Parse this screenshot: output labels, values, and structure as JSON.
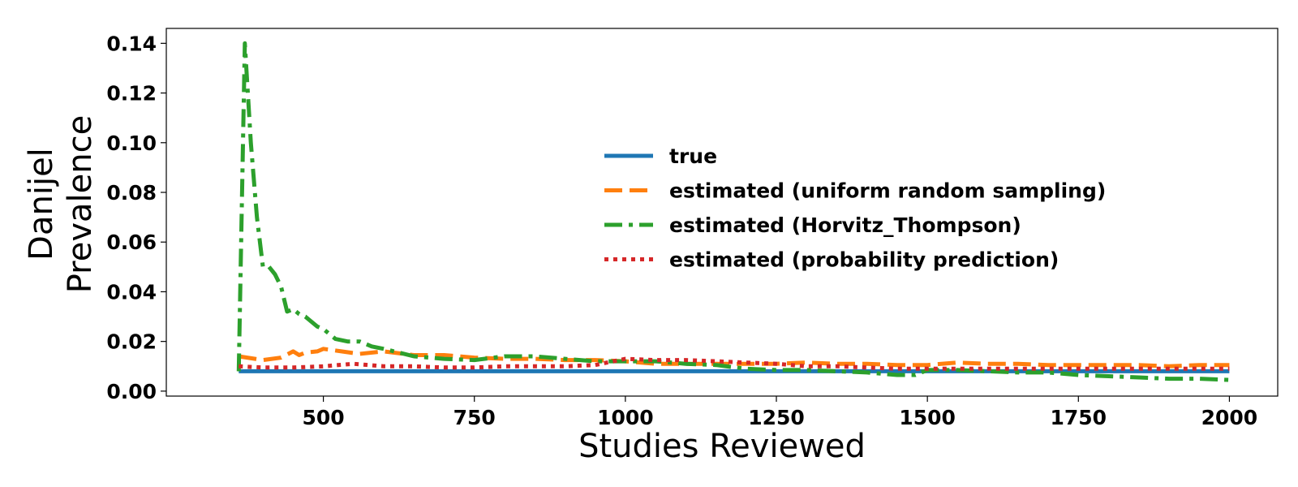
{
  "chart_data": {
    "type": "line",
    "title": "",
    "xlabel": "Studies Reviewed",
    "ylabel_lines": [
      "Danijel",
      "Prevalence"
    ],
    "xlim": [
      240,
      2080
    ],
    "ylim": [
      -0.002,
      0.146
    ],
    "x_ticks": [
      500,
      750,
      1000,
      1250,
      1500,
      1750,
      2000
    ],
    "x_tick_labels": [
      "500",
      "750",
      "1000",
      "1250",
      "1500",
      "1750",
      "2000"
    ],
    "y_ticks": [
      0.0,
      0.02,
      0.04,
      0.06,
      0.08,
      0.1,
      0.12,
      0.14
    ],
    "y_tick_labels": [
      "0.00",
      "0.02",
      "0.04",
      "0.06",
      "0.08",
      "0.10",
      "0.12",
      "0.14"
    ],
    "grid": false,
    "legend_position": "center-right",
    "series": [
      {
        "name": "true",
        "color": "#1f77b4",
        "dash": "solid",
        "x": [
          360,
          2000
        ],
        "y": [
          0.008,
          0.008
        ]
      },
      {
        "name": "estimated (uniform random sampling)",
        "color": "#ff7f0e",
        "dash": "dashed",
        "x": [
          360,
          400,
          430,
          450,
          460,
          470,
          490,
          500,
          530,
          560,
          600,
          650,
          700,
          750,
          800,
          850,
          900,
          950,
          1000,
          1050,
          1100,
          1150,
          1200,
          1250,
          1300,
          1350,
          1400,
          1450,
          1500,
          1550,
          1600,
          1650,
          1700,
          1750,
          1800,
          1850,
          1900,
          1950,
          2000
        ],
        "y": [
          0.014,
          0.0125,
          0.0135,
          0.016,
          0.0145,
          0.0155,
          0.016,
          0.017,
          0.016,
          0.015,
          0.016,
          0.0145,
          0.0145,
          0.0135,
          0.013,
          0.013,
          0.0125,
          0.0125,
          0.012,
          0.011,
          0.011,
          0.011,
          0.011,
          0.011,
          0.0115,
          0.011,
          0.011,
          0.0105,
          0.0105,
          0.0115,
          0.011,
          0.011,
          0.0105,
          0.0105,
          0.0105,
          0.0105,
          0.01,
          0.0105,
          0.0105
        ]
      },
      {
        "name": "estimated (Horvitz_Thompson)",
        "color": "#2ca02c",
        "dash": "dashdot",
        "x": [
          360,
          370,
          380,
          390,
          400,
          410,
          420,
          430,
          440,
          450,
          460,
          470,
          480,
          490,
          500,
          520,
          540,
          560,
          580,
          600,
          650,
          700,
          750,
          800,
          850,
          900,
          950,
          1000,
          1050,
          1100,
          1150,
          1200,
          1250,
          1300,
          1350,
          1400,
          1450,
          1480,
          1500,
          1550,
          1600,
          1650,
          1700,
          1750,
          1800,
          1850,
          1900,
          1950,
          2000
        ],
        "y": [
          0.008,
          0.14,
          0.1,
          0.07,
          0.05,
          0.05,
          0.047,
          0.042,
          0.032,
          0.033,
          0.031,
          0.03,
          0.028,
          0.026,
          0.025,
          0.021,
          0.02,
          0.02,
          0.018,
          0.017,
          0.014,
          0.013,
          0.0125,
          0.014,
          0.014,
          0.013,
          0.012,
          0.012,
          0.012,
          0.011,
          0.0105,
          0.009,
          0.0085,
          0.0085,
          0.008,
          0.0075,
          0.0065,
          0.0065,
          0.0085,
          0.0085,
          0.008,
          0.0075,
          0.0075,
          0.0065,
          0.006,
          0.0055,
          0.005,
          0.005,
          0.0045
        ]
      },
      {
        "name": "estimated (probability prediction)",
        "color": "#d62728",
        "dash": "dotted",
        "x": [
          360,
          400,
          450,
          500,
          550,
          600,
          650,
          700,
          750,
          800,
          850,
          900,
          950,
          1000,
          1050,
          1100,
          1150,
          1200,
          1250,
          1300,
          1350,
          1400,
          1450,
          1500,
          1550,
          1600,
          1650,
          1700,
          1750,
          1800,
          1850,
          1900,
          1950,
          2000
        ],
        "y": [
          0.01,
          0.0095,
          0.0095,
          0.01,
          0.011,
          0.01,
          0.01,
          0.0095,
          0.0095,
          0.01,
          0.01,
          0.01,
          0.0105,
          0.013,
          0.0125,
          0.0125,
          0.012,
          0.0115,
          0.011,
          0.01,
          0.01,
          0.0095,
          0.009,
          0.009,
          0.009,
          0.009,
          0.009,
          0.009,
          0.009,
          0.009,
          0.009,
          0.009,
          0.009,
          0.009
        ]
      }
    ]
  }
}
